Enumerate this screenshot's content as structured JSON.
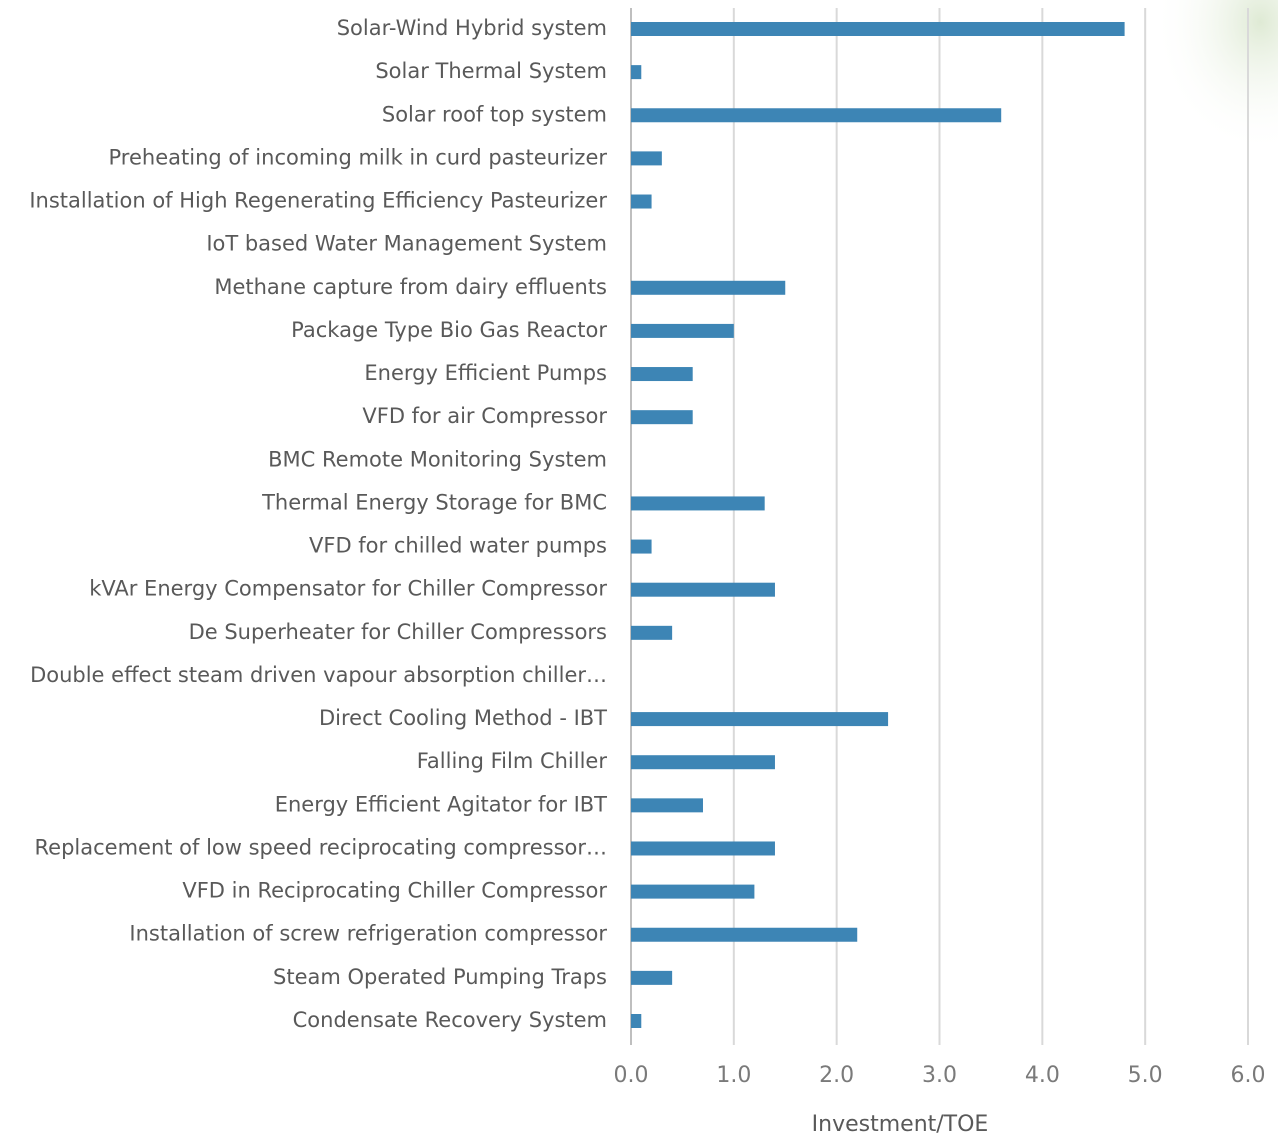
{
  "chart_data": {
    "type": "bar",
    "orientation": "horizontal",
    "x_axis_label": "Investment/TOE",
    "categories": [
      "Solar-Wind Hybrid system",
      "Solar Thermal System",
      "Solar roof top system",
      "Preheating of incoming milk in curd pasteurizer",
      "Installation of High Regenerating Efficiency Pasteurizer",
      "IoT based Water Management System",
      "Methane capture from dairy effluents",
      "Package Type Bio Gas Reactor",
      "Energy Efficient Pumps",
      "VFD for air Compressor",
      "BMC Remote Monitoring System",
      "Thermal Energy Storage for BMC",
      "VFD for chilled water pumps",
      "kVAr Energy Compensator for Chiller Compressor",
      "De Superheater for Chiller Compressors",
      "Double effect steam driven vapour absorption chiller…",
      "Direct Cooling Method - IBT",
      "Falling Film Chiller",
      "Energy Efficient Agitator for IBT",
      "Replacement of low speed reciprocating compressor…",
      "VFD in Reciprocating Chiller Compressor",
      "Installation of screw refrigeration compressor",
      "Steam Operated Pumping Traps",
      "Condensate Recovery System"
    ],
    "values": [
      4.8,
      0.1,
      3.6,
      0.3,
      0.2,
      0,
      1.5,
      1.0,
      0.6,
      0.6,
      0,
      1.3,
      0.2,
      1.4,
      0.4,
      0,
      2.5,
      1.4,
      0.7,
      1.4,
      1.2,
      2.2,
      0.4,
      0.1
    ],
    "color": "#3d85b5",
    "xlim": [
      0,
      6
    ],
    "xticks": [
      {
        "value": 0,
        "label": "0.0"
      },
      {
        "value": 1,
        "label": "1.0"
      },
      {
        "value": 2,
        "label": "2.0"
      },
      {
        "value": 3,
        "label": "3.0"
      },
      {
        "value": 4,
        "label": "4.0"
      },
      {
        "value": 5,
        "label": "5.0"
      },
      {
        "value": 6,
        "label": "6.0"
      }
    ],
    "grid": true
  }
}
